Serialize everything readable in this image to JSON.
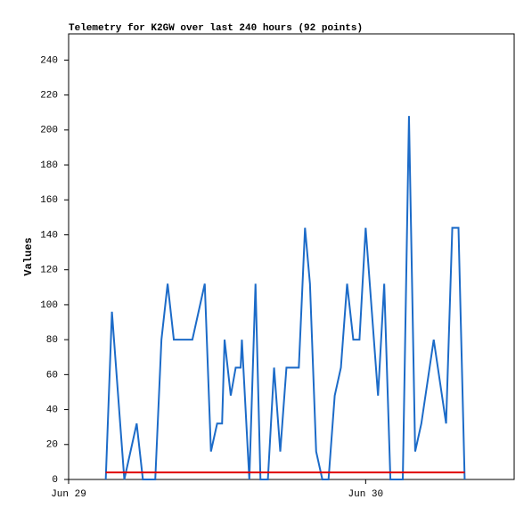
{
  "chart_data": {
    "type": "line",
    "title": "Telemetry for K2GW over last 240 hours (92 points)",
    "y_label": "Values",
    "xlim": [
      0,
      36
    ],
    "ylim": [
      0,
      255
    ],
    "xticks": [
      {
        "value": 0,
        "label": "Jun 29"
      },
      {
        "value": 24,
        "label": "Jun 30"
      }
    ],
    "yticks": [
      0,
      20,
      40,
      60,
      80,
      100,
      120,
      140,
      160,
      180,
      200,
      220,
      240
    ],
    "series": [
      {
        "color": "#1c6bc8",
        "x": [
          3.0,
          3.5,
          4.5,
          5.5,
          6.0,
          7.0,
          7.5,
          8.0,
          8.5,
          10.0,
          11.0,
          11.5,
          12.0,
          12.4,
          12.6,
          13.1,
          13.5,
          13.9,
          14.0,
          14.15,
          14.6,
          15.1,
          15.5,
          16.1,
          16.6,
          17.1,
          17.6,
          18.6,
          19.1,
          19.5,
          20.0,
          20.5,
          21.0,
          21.5,
          22.0,
          22.5,
          23.0,
          23.5,
          24.0,
          24.5,
          25.0,
          25.5,
          26.0,
          27.0,
          27.5,
          28.0,
          28.5,
          29.5,
          30.5,
          31.0,
          31.5,
          32.0
        ],
        "values": [
          0,
          96,
          0,
          32,
          0,
          0,
          80,
          112,
          80,
          80,
          112,
          16,
          32,
          32,
          80,
          48,
          64,
          64,
          80,
          60,
          0,
          112,
          0,
          0,
          64,
          16,
          64,
          64,
          144,
          112,
          16,
          0,
          0,
          48,
          64,
          112,
          80,
          80,
          144,
          96,
          48,
          112,
          0,
          0,
          208,
          16,
          32,
          80,
          32,
          144,
          144,
          0
        ]
      },
      {
        "color": "#e00000",
        "x": [
          3.0,
          32.0
        ],
        "values": [
          4,
          4
        ]
      }
    ]
  }
}
